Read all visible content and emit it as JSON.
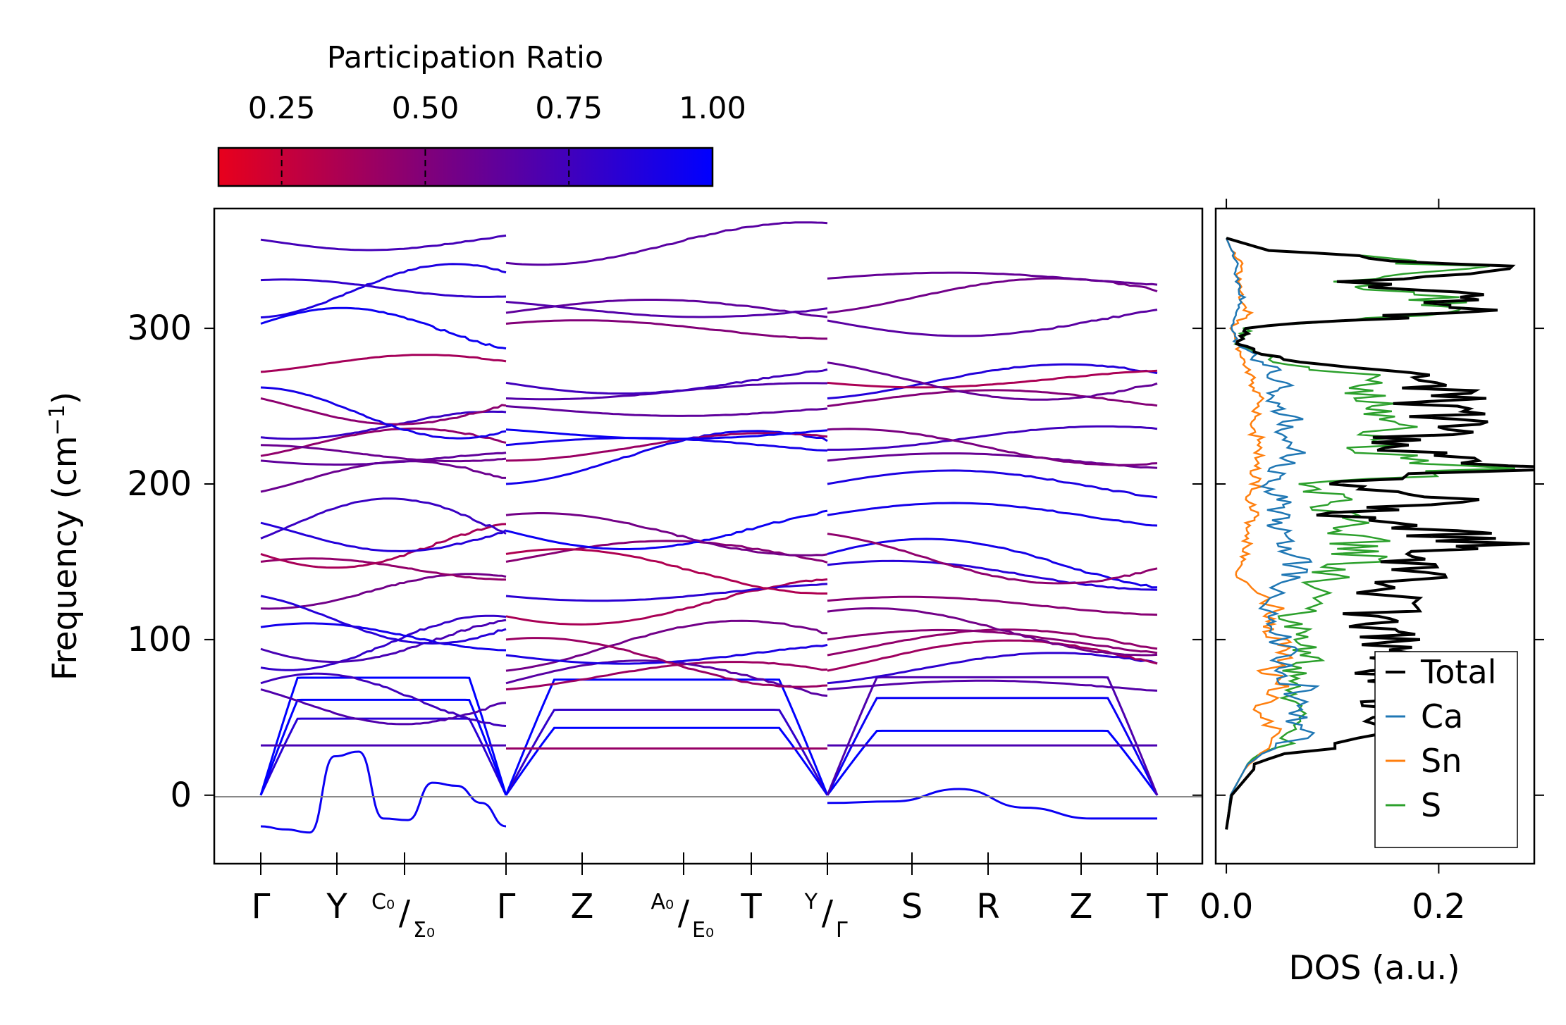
{
  "chart_data": [
    {
      "type": "line",
      "panel": "phonon-band-structure",
      "ylabel": "Frequency (cm⁻¹)",
      "ylim": [
        -44,
        377
      ],
      "yticks": [
        0,
        100,
        200,
        300
      ],
      "kpoints": [
        {
          "label": "Γ",
          "pos": 0.0
        },
        {
          "label": "Y",
          "pos": 0.9
        },
        {
          "label": "C₀/Σ₀",
          "pos": 1.7,
          "sup": "C₀",
          "sub": "Σ₀"
        },
        {
          "label": "Γ",
          "pos": 2.9
        },
        {
          "label": "Z",
          "pos": 3.8
        },
        {
          "label": "A₀/E₀",
          "pos": 5.0,
          "sup": "A₀",
          "sub": "E₀"
        },
        {
          "label": "T",
          "pos": 5.8
        },
        {
          "label": "Y/Γ",
          "pos": 6.7,
          "sup": "Y",
          "sub": "Γ"
        },
        {
          "label": "S",
          "pos": 7.7
        },
        {
          "label": "R",
          "pos": 8.6
        },
        {
          "label": "Z",
          "pos": 9.7
        },
        {
          "label": "T",
          "pos": 10.6
        }
      ],
      "segments": [
        [
          0.0,
          2.9
        ],
        [
          2.9,
          6.7
        ],
        [
          6.7,
          10.6
        ]
      ],
      "zero_line": 0,
      "segment_start_freqs": [
        [
          0,
          0,
          0,
          32,
          68,
          72,
          82,
          94,
          108,
          120,
          128,
          150,
          155,
          165,
          175,
          195,
          215,
          218,
          225,
          230,
          255,
          262,
          272,
          303,
          307,
          331,
          357
        ],
        [
          0,
          0,
          0,
          30,
          68,
          72,
          80,
          90,
          100,
          115,
          128,
          150,
          155,
          170,
          180,
          200,
          215,
          225,
          235,
          250,
          255,
          265,
          303,
          310,
          317,
          342
        ],
        [
          0,
          0,
          0,
          32,
          68,
          72,
          80,
          90,
          100,
          118,
          125,
          148,
          155,
          168,
          180,
          200,
          215,
          222,
          235,
          250,
          255,
          265,
          278,
          305,
          310,
          332
        ]
      ],
      "imaginary_branches": [
        {
          "segment": 1,
          "values": [
            -20,
            -22,
            -24,
            25,
            28,
            -15,
            -16,
            8,
            6,
            -5,
            -20
          ]
        },
        {
          "segment": 3,
          "values": [
            -5,
            -4,
            4,
            -8,
            -15,
            -15
          ]
        }
      ]
    },
    {
      "type": "line",
      "panel": "density-of-states",
      "xlabel": "DOS (a.u.)",
      "xlim": [
        -0.01,
        0.29
      ],
      "xticks": [
        "0.0",
        "0.2"
      ],
      "ylim": [
        -44,
        377
      ],
      "series": [
        {
          "name": "Total",
          "color": "#000000",
          "freq": [
            -22,
            0,
            20,
            40,
            55,
            70,
            80,
            90,
            100,
            110,
            120,
            140,
            150,
            160,
            170,
            180,
            190,
            200,
            210,
            220,
            230,
            240,
            250,
            260,
            270,
            280,
            290,
            300,
            310,
            320,
            330,
            340,
            350,
            358
          ],
          "dos": [
            0.0,
            0.005,
            0.03,
            0.14,
            0.15,
            0.17,
            0.15,
            0.17,
            0.16,
            0.13,
            0.15,
            0.17,
            0.18,
            0.24,
            0.2,
            0.1,
            0.2,
            0.09,
            0.28,
            0.19,
            0.17,
            0.22,
            0.18,
            0.22,
            0.16,
            0.05,
            0.01,
            0.02,
            0.2,
            0.24,
            0.12,
            0.25,
            0.04,
            0.0
          ]
        },
        {
          "name": "Ca",
          "color": "#1f77b4",
          "freq": [
            -22,
            0,
            20,
            40,
            55,
            70,
            80,
            90,
            100,
            110,
            120,
            140,
            150,
            160,
            170,
            180,
            190,
            200,
            210,
            220,
            230,
            240,
            250,
            260,
            270,
            280,
            290,
            300,
            310,
            320,
            330,
            340,
            350,
            358
          ],
          "dos": [
            0.0,
            0.004,
            0.02,
            0.07,
            0.06,
            0.07,
            0.05,
            0.06,
            0.05,
            0.05,
            0.04,
            0.06,
            0.07,
            0.06,
            0.05,
            0.05,
            0.05,
            0.04,
            0.05,
            0.06,
            0.05,
            0.06,
            0.05,
            0.05,
            0.05,
            0.03,
            0.01,
            0.005,
            0.01,
            0.015,
            0.01,
            0.01,
            0.005,
            0.0
          ]
        },
        {
          "name": "Sn",
          "color": "#ff7f0e",
          "freq": [
            -22,
            0,
            20,
            40,
            55,
            70,
            80,
            90,
            100,
            110,
            120,
            140,
            150,
            160,
            170,
            180,
            190,
            200,
            210,
            220,
            230,
            240,
            250,
            260,
            270,
            280,
            290,
            300,
            310,
            320,
            330,
            340,
            350,
            358
          ],
          "dos": [
            0.0,
            0.004,
            0.02,
            0.05,
            0.03,
            0.05,
            0.04,
            0.06,
            0.05,
            0.04,
            0.05,
            0.01,
            0.015,
            0.02,
            0.02,
            0.025,
            0.02,
            0.03,
            0.03,
            0.03,
            0.03,
            0.025,
            0.03,
            0.03,
            0.02,
            0.015,
            0.01,
            0.005,
            0.02,
            0.015,
            0.01,
            0.015,
            0.005,
            0.0
          ]
        },
        {
          "name": "S",
          "color": "#2ca02c",
          "freq": [
            -22,
            0,
            20,
            40,
            55,
            70,
            80,
            90,
            100,
            110,
            120,
            140,
            150,
            160,
            170,
            180,
            190,
            200,
            210,
            220,
            230,
            240,
            250,
            260,
            270,
            280,
            290,
            300,
            310,
            320,
            330,
            340,
            350,
            358
          ],
          "dos": [
            0.0,
            0.004,
            0.02,
            0.07,
            0.06,
            0.07,
            0.06,
            0.08,
            0.07,
            0.06,
            0.07,
            0.1,
            0.12,
            0.13,
            0.12,
            0.11,
            0.1,
            0.09,
            0.23,
            0.15,
            0.13,
            0.16,
            0.14,
            0.15,
            0.12,
            0.04,
            0.01,
            0.02,
            0.18,
            0.22,
            0.1,
            0.24,
            0.04,
            0.0
          ]
        }
      ],
      "legend": {
        "position": "bottom-right",
        "entries": [
          "Total",
          "Ca",
          "Sn",
          "S"
        ]
      }
    }
  ],
  "colorbar": {
    "title": "Participation Ratio",
    "ticks": [
      "0.25",
      "0.50",
      "0.75",
      "1.00"
    ],
    "tick_values": [
      0.25,
      0.5,
      0.75,
      1.0
    ],
    "range": [
      0.14,
      1.0
    ],
    "color_low": "#e8001c",
    "color_mid": "#7a0080",
    "color_high": "#0000ff"
  }
}
